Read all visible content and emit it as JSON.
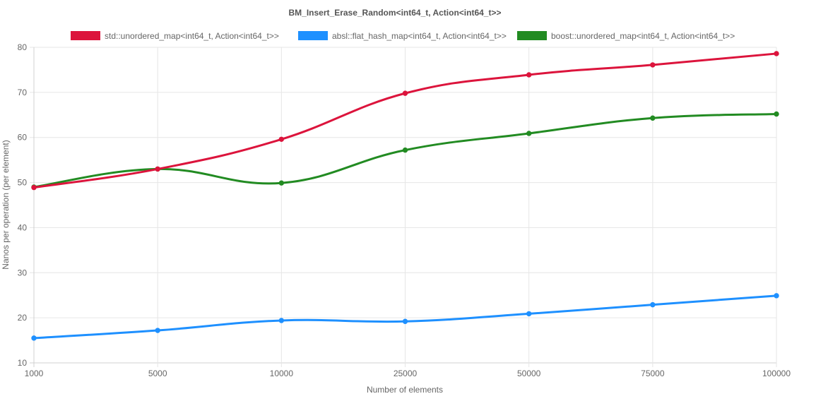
{
  "chart_data": {
    "type": "line",
    "title": "BM_Insert_Erase_Random<int64_t, Action<int64_t>>",
    "xlabel": "Number of elements",
    "ylabel": "Nanos per operation (per element)",
    "categories": [
      "1000",
      "5000",
      "10000",
      "25000",
      "50000",
      "75000",
      "100000"
    ],
    "ylim": [
      10,
      80
    ],
    "yticks": [
      10,
      20,
      30,
      40,
      50,
      60,
      70,
      80
    ],
    "grid": true,
    "legend_position": "top",
    "series": [
      {
        "name": "std::unordered_map<int64_t, Action<int64_t>>",
        "color": "#dc143c",
        "values": [
          48.9,
          53.0,
          59.6,
          69.8,
          73.9,
          76.1,
          78.6
        ]
      },
      {
        "name": "absl::flat_hash_map<int64_t, Action<int64_t>>",
        "color": "#1e90ff",
        "values": [
          15.5,
          17.2,
          19.4,
          19.2,
          20.9,
          22.9,
          24.9
        ]
      },
      {
        "name": "boost::unordered_map<int64_t, Action<int64_t>>",
        "color": "#228b22",
        "values": [
          49.0,
          53.0,
          49.9,
          57.2,
          60.9,
          64.3,
          65.2
        ]
      }
    ]
  }
}
